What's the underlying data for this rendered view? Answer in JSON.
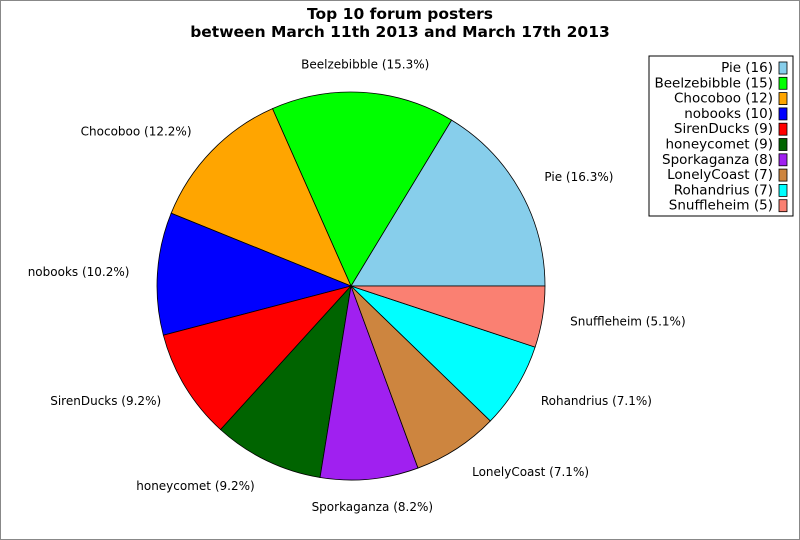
{
  "chart_data": {
    "type": "pie",
    "title": "Top 10 forum posters",
    "subtitle": "between March 11th 2013 and March 17th 2013",
    "legend_position": "top-right",
    "start_angle_deg": 0,
    "direction": "counterclockwise",
    "slices": [
      {
        "name": "Pie",
        "value": 16,
        "percent_label": "Pie (16.3%)",
        "legend_label": "Pie (16)",
        "color": "#87ceeb"
      },
      {
        "name": "Beelzebibble",
        "value": 15,
        "percent_label": "Beelzebibble (15.3%)",
        "legend_label": "Beelzebibble (15)",
        "color": "#00ff00"
      },
      {
        "name": "Chocoboo",
        "value": 12,
        "percent_label": "Chocoboo (12.2%)",
        "legend_label": "Chocoboo (12)",
        "color": "#ffa500"
      },
      {
        "name": "nobooks",
        "value": 10,
        "percent_label": "nobooks (10.2%)",
        "legend_label": "nobooks (10)",
        "color": "#0000ff"
      },
      {
        "name": "SirenDucks",
        "value": 9,
        "percent_label": "SirenDucks (9.2%)",
        "legend_label": "SirenDucks (9)",
        "color": "#ff0000"
      },
      {
        "name": "honeycomet",
        "value": 9,
        "percent_label": "honeycomet (9.2%)",
        "legend_label": "honeycomet (9)",
        "color": "#006400"
      },
      {
        "name": "Sporkaganza",
        "value": 8,
        "percent_label": "Sporkaganza (8.2%)",
        "legend_label": "Sporkaganza (8)",
        "color": "#a020f0"
      },
      {
        "name": "LonelyCoast",
        "value": 7,
        "percent_label": "LonelyCoast (7.1%)",
        "legend_label": "LonelyCoast (7)",
        "color": "#cd853f"
      },
      {
        "name": "Rohandrius",
        "value": 7,
        "percent_label": "Rohandrius (7.1%)",
        "legend_label": "Rohandrius (7)",
        "color": "#00ffff"
      },
      {
        "name": "Snuffleheim",
        "value": 5,
        "percent_label": "Snuffleheim (5.1%)",
        "legend_label": "Snuffleheim (5)",
        "color": "#fa8072"
      }
    ]
  }
}
